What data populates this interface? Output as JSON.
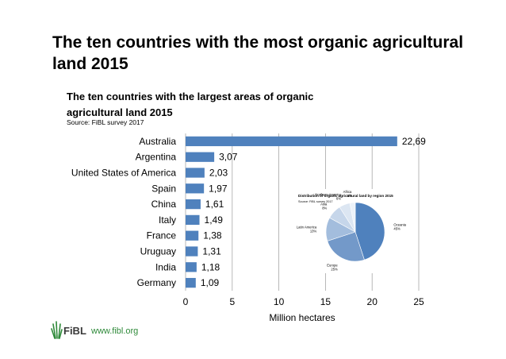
{
  "slide": {
    "title": "The ten countries with the most organic agricultural land 2015"
  },
  "chart_data": [
    {
      "type": "bar",
      "orientation": "horizontal",
      "title": "The ten countries with the largest areas of organic agricultural land 2015",
      "subtitle": "Source: FiBL survey 2017",
      "xlabel": "Million hectares",
      "ylabel": "",
      "categories": [
        "Australia",
        "Argentina",
        "United States of America",
        "Spain",
        "China",
        "Italy",
        "France",
        "Uruguay",
        "India",
        "Germany"
      ],
      "values": [
        22.69,
        3.07,
        2.03,
        1.97,
        1.61,
        1.49,
        1.38,
        1.31,
        1.18,
        1.09
      ],
      "value_labels": [
        "22,69",
        "3,07",
        "2,03",
        "1,97",
        "1,61",
        "1,49",
        "1,38",
        "1,31",
        "1,18",
        "1,09"
      ],
      "xlim": [
        0,
        25
      ],
      "xticks": [
        0,
        5,
        10,
        15,
        20,
        25
      ],
      "grid": "vertical",
      "colors": {
        "bar": "#4f81bd",
        "grid": "#a6a6a6"
      }
    },
    {
      "type": "pie",
      "title": "Distribution of organic agricultural land by region 2015",
      "subtitle": "Source: FiBL survey 2017",
      "categories": [
        "Oceania",
        "Europe",
        "Latin America",
        "Asia",
        "Northern America",
        "Africa"
      ],
      "labels": [
        "Oceania 45%",
        "Europe 25%",
        "Latin America 13%",
        "Asia 8%",
        "Northern America 6%",
        "Africa 3%"
      ],
      "values": [
        45,
        25,
        13,
        8,
        6,
        3
      ],
      "colors": [
        "#4f81bd",
        "#7399c9",
        "#a3bddd",
        "#c6d6ea",
        "#dce6f2",
        "#ecf2f9"
      ]
    }
  ],
  "footer": {
    "logo_text": "FiBL",
    "url": "www.fibl.org",
    "logo_color": "#2f8a3a"
  }
}
